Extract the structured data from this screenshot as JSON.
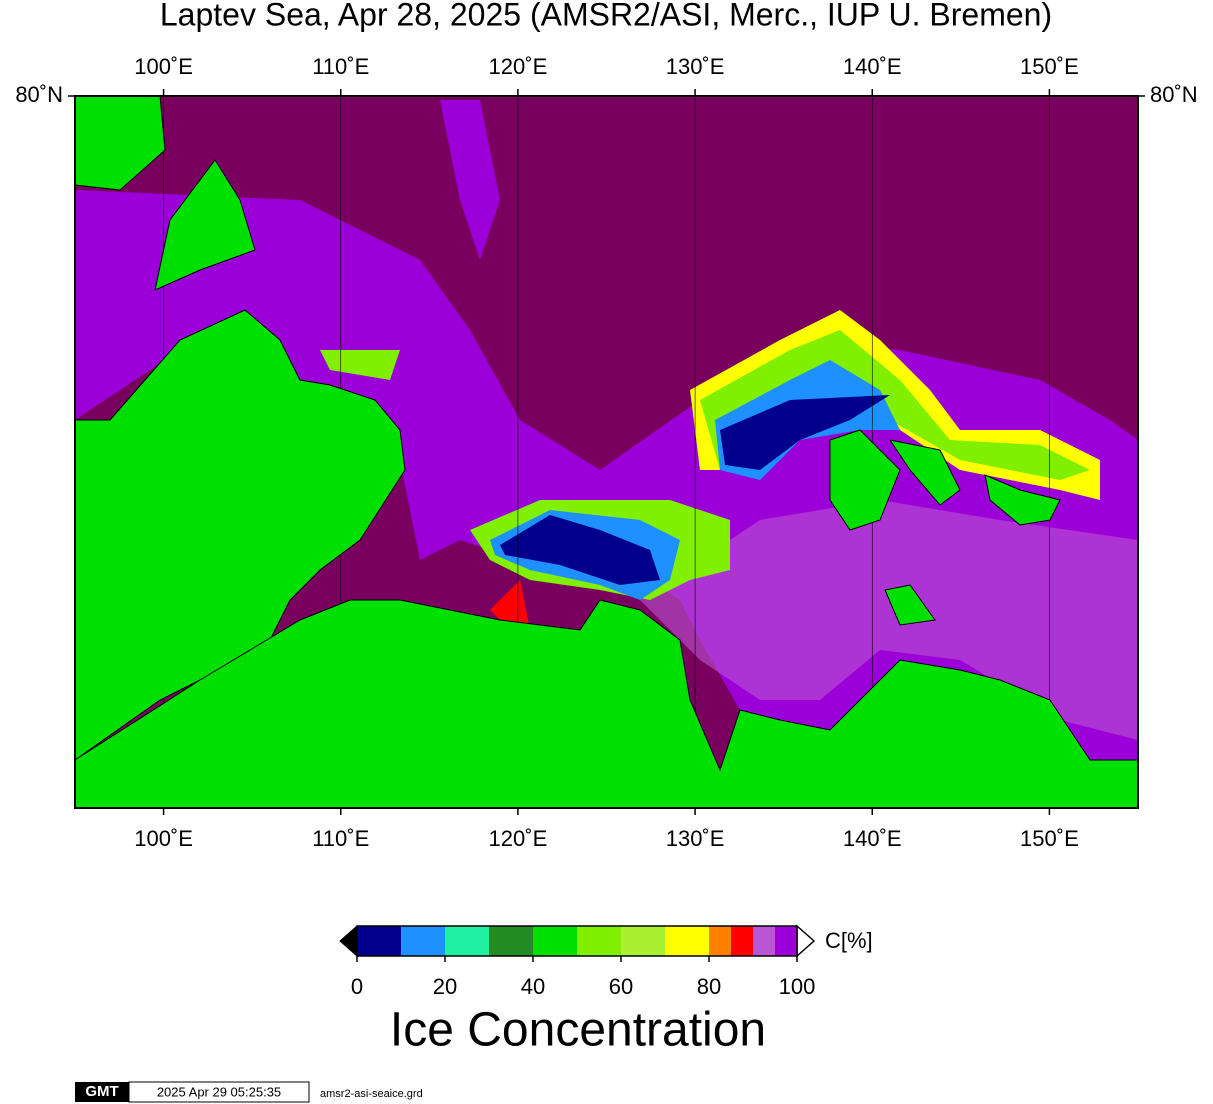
{
  "chart_data": {
    "type": "map",
    "title": "Laptev Sea, Apr 28, 2025 (AMSR2/ASI, Merc., IUP U. Bremen)",
    "xlim": [
      95,
      155
    ],
    "xticks": [
      {
        "value": 100,
        "label": "100˚E"
      },
      {
        "value": 110,
        "label": "110˚E"
      },
      {
        "value": 120,
        "label": "120˚E"
      },
      {
        "value": 130,
        "label": "130˚E"
      },
      {
        "value": 140,
        "label": "140˚E"
      },
      {
        "value": 150,
        "label": "150˚E"
      }
    ],
    "yticks": [
      {
        "value": 80,
        "label": "80˚N"
      }
    ],
    "colorbar": {
      "label": "Ice Concentration",
      "unit": "C[%]",
      "ticks": [
        0,
        20,
        40,
        60,
        80,
        100
      ],
      "bounds": [
        0,
        10,
        20,
        30,
        40,
        50,
        60,
        70,
        80,
        85,
        90,
        95,
        100
      ],
      "colors": [
        "#00008c",
        "#1e90ff",
        "#20f0a0",
        "#228b22",
        "#00e000",
        "#80f000",
        "#a8f030",
        "#ffff00",
        "#ff8000",
        "#ff0000",
        "#ba55d3",
        "#9b00d8"
      ]
    },
    "footer": {
      "logo": "GMT",
      "timestamp": "2025 Apr 29 05:25:35",
      "filename": "amsr2-asi-seaice.grd"
    }
  }
}
